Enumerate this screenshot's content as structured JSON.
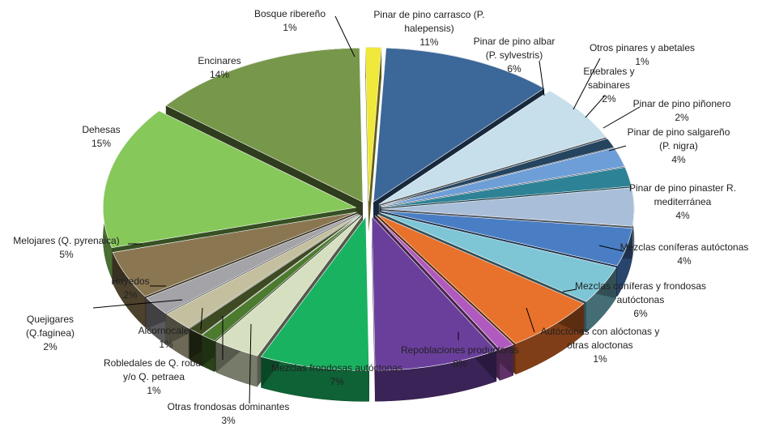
{
  "chart_data": {
    "type": "pie",
    "title": "",
    "series": [
      {
        "label": [
          "Pinar de pino carrasco (P.",
          "halepensis)"
        ],
        "value": 11,
        "color": "#3c6799"
      },
      {
        "label": [
          "Pinar de pino albar",
          "(P. sylvestris)"
        ],
        "value": 6,
        "color": "#c6dfeb"
      },
      {
        "label": [
          "Otros pinares y abetales"
        ],
        "value": 1,
        "color": "#24445f"
      },
      {
        "label": [
          "Enebrales y",
          "sabinares"
        ],
        "value": 2,
        "color": "#6e9ed8"
      },
      {
        "label": [
          "Pinar de pino piñonero"
        ],
        "value": 2,
        "color": "#2e8296"
      },
      {
        "label": [
          "Pinar de pino salgareño",
          "(P. nigra)"
        ],
        "value": 4,
        "color": "#a9bfd9"
      },
      {
        "label": [
          "Pinar de pino pinaster R.",
          "mediterránea"
        ],
        "value": 4,
        "color": "#4a7ec4"
      },
      {
        "label": [
          "Mezclas coníferas autóctonas"
        ],
        "value": 4,
        "color": "#7ec6d6"
      },
      {
        "label": [
          "Mezclas coníferas y frondosas",
          "autóctonas"
        ],
        "value": 6,
        "color": "#e8712b"
      },
      {
        "label": [
          "Autóctonas con alóctonas y",
          "otras aloctonas"
        ],
        "value": 1,
        "color": "#b05abf"
      },
      {
        "label": [
          "Repoblaciones productoras"
        ],
        "value": 8,
        "color": "#6a3f9c"
      },
      {
        "label": [
          "Mezclas frondosas autóctonas"
        ],
        "value": 7,
        "color": "#19b261"
      },
      {
        "label": [
          "Otras frondosas dominantes"
        ],
        "value": 3,
        "color": "#d6e0c0"
      },
      {
        "label": [
          "Robledales de Q. robur",
          "y/o Q. petraea"
        ],
        "value": 1,
        "color": "#4c7a2e"
      },
      {
        "label": [
          "Alcornocales"
        ],
        "value": 1,
        "color": "#3e4a22"
      },
      {
        "label": [
          "Quejigares",
          "(Q.faginea)"
        ],
        "value": 2,
        "color": "#c4bf9e"
      },
      {
        "label": [
          "Hayedos"
        ],
        "value": 2,
        "color": "#a3a3a8"
      },
      {
        "label": [
          "Melojares (Q. pyrenaica)"
        ],
        "value": 5,
        "color": "#8a7752"
      },
      {
        "label": [
          "Dehesas"
        ],
        "value": 15,
        "color": "#86c85a"
      },
      {
        "label": [
          "Encinares"
        ],
        "value": 14,
        "color": "#77974a"
      },
      {
        "label": [
          "Bosque ribereño"
        ],
        "value": 1,
        "color": "#f0e83a"
      }
    ]
  }
}
